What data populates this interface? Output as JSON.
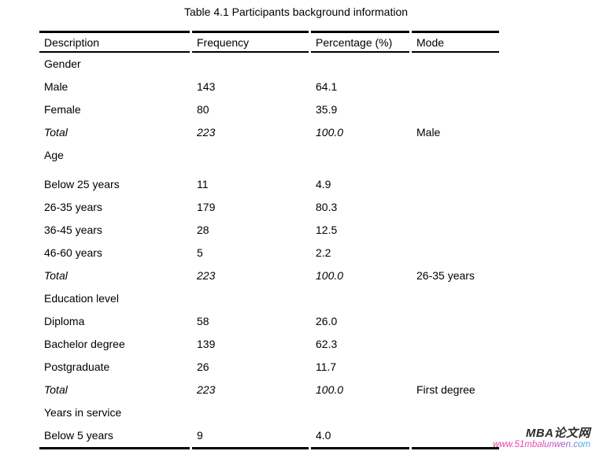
{
  "page": {
    "title": "Table 4.1 Participants background information"
  },
  "table": {
    "columns": [
      "Description",
      "Frequency",
      "Percentage (%)",
      "Mode"
    ],
    "rows": [
      {
        "cells": [
          "Gender",
          "",
          "",
          ""
        ],
        "italic": false,
        "tall": false
      },
      {
        "cells": [
          "Male",
          "143",
          "64.1",
          ""
        ],
        "italic": false,
        "tall": false
      },
      {
        "cells": [
          "Female",
          "80",
          "35.9",
          ""
        ],
        "italic": false,
        "tall": false
      },
      {
        "cells": [
          "Total",
          "223",
          "100.0",
          "Male"
        ],
        "italic": true,
        "tall": false
      },
      {
        "cells": [
          "Age",
          "",
          "",
          ""
        ],
        "italic": false,
        "tall": true
      },
      {
        "cells": [
          "Below 25 years",
          "11",
          "4.9",
          ""
        ],
        "italic": false,
        "tall": false
      },
      {
        "cells": [
          "26-35 years",
          "179",
          "80.3",
          ""
        ],
        "italic": false,
        "tall": false
      },
      {
        "cells": [
          "36-45 years",
          "28",
          "12.5",
          ""
        ],
        "italic": false,
        "tall": false
      },
      {
        "cells": [
          "46-60 years",
          "5",
          "2.2",
          ""
        ],
        "italic": false,
        "tall": false
      },
      {
        "cells": [
          "Total",
          "223",
          "100.0",
          "26-35 years"
        ],
        "italic": true,
        "tall": false
      },
      {
        "cells": [
          "Education level",
          "",
          "",
          ""
        ],
        "italic": false,
        "tall": false
      },
      {
        "cells": [
          "Diploma",
          "58",
          "26.0",
          ""
        ],
        "italic": false,
        "tall": false
      },
      {
        "cells": [
          "Bachelor degree",
          "139",
          "62.3",
          ""
        ],
        "italic": false,
        "tall": false
      },
      {
        "cells": [
          "Postgraduate",
          "26",
          "11.7",
          ""
        ],
        "italic": false,
        "tall": false
      },
      {
        "cells": [
          "Total",
          "223",
          "100.0",
          "First degree"
        ],
        "italic": true,
        "tall": false
      },
      {
        "cells": [
          "Years in service",
          "",
          "",
          ""
        ],
        "italic": false,
        "tall": false
      },
      {
        "cells": [
          "Below 5 years",
          "9",
          "4.0",
          ""
        ],
        "italic": false,
        "tall": false
      }
    ]
  },
  "watermark": {
    "brand": "MBA论文网",
    "url": "www.51mbalunwen.com",
    "brand_color": "#2f2b2b",
    "url_gradient_start": "#e0339f",
    "url_gradient_end": "#2eb8e8"
  },
  "colors": {
    "text": "#000000",
    "border": "#000000",
    "background": "#ffffff"
  }
}
